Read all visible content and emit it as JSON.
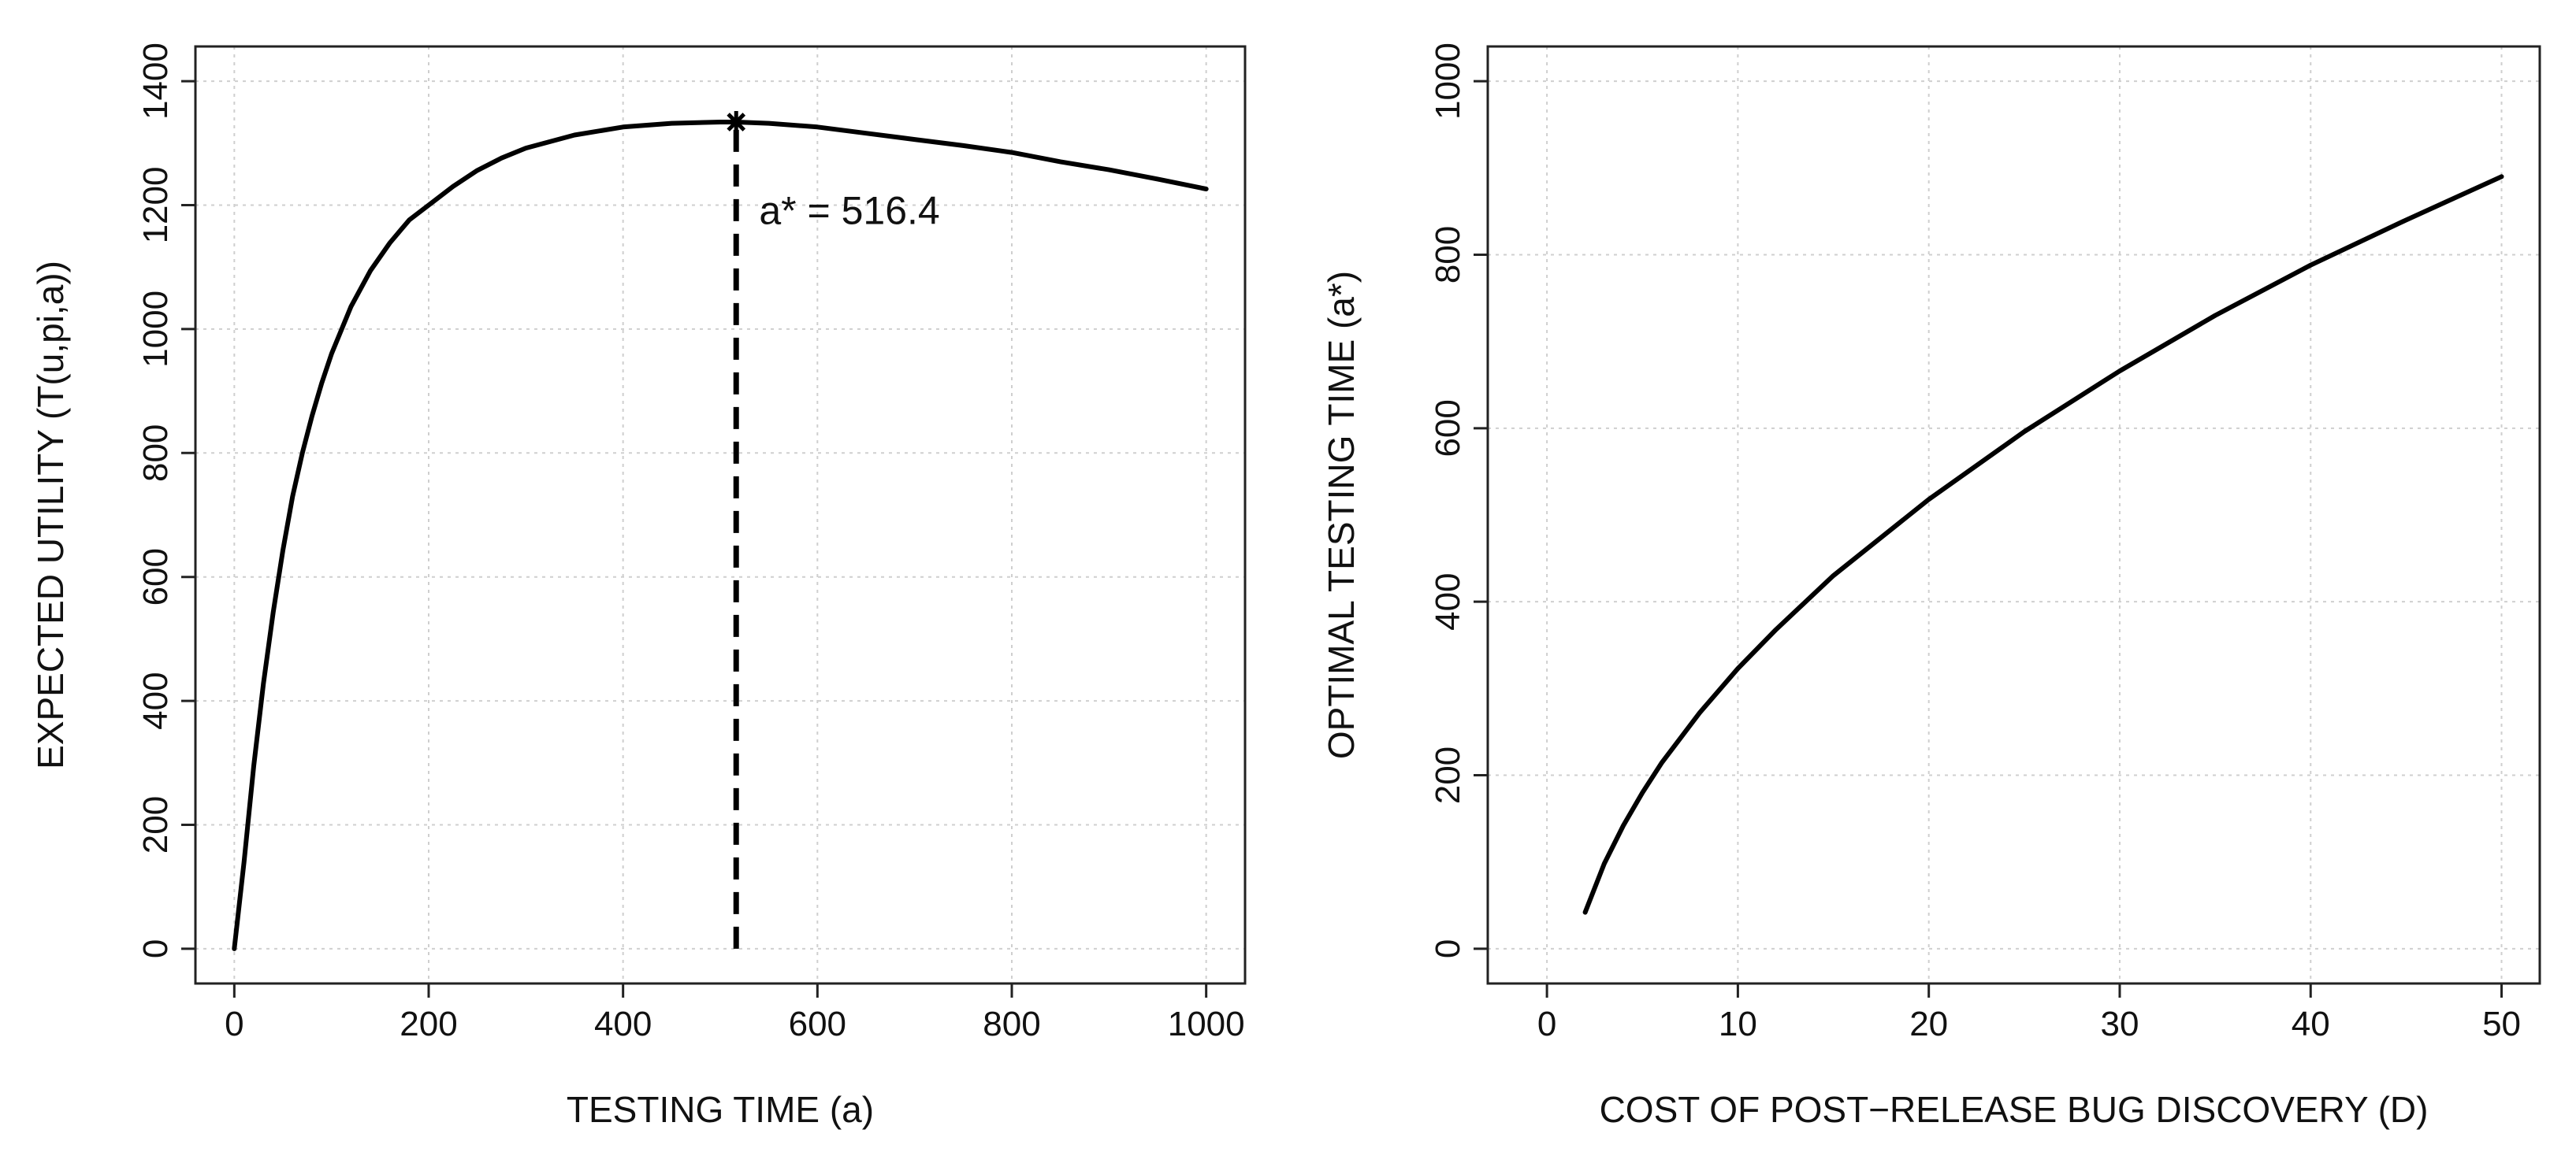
{
  "chart_data": [
    {
      "type": "line",
      "xlabel": "TESTING TIME (a)",
      "ylabel": "EXPECTED UTILITY (T(u,pi,a))",
      "xlim": [
        -40,
        1040
      ],
      "ylim": [
        -56,
        1456
      ],
      "xticks": [
        0,
        200,
        400,
        600,
        800,
        1000
      ],
      "yticks": [
        0,
        200,
        400,
        600,
        800,
        1000,
        1200,
        1400
      ],
      "grid": true,
      "series": [
        {
          "x": [
            0,
            10,
            20,
            30,
            40,
            50,
            60,
            70,
            80,
            90,
            100,
            120,
            140,
            160,
            180,
            200,
            225,
            250,
            275,
            300,
            350,
            400,
            450,
            500,
            516.4,
            550,
            600,
            650,
            700,
            750,
            800,
            850,
            900,
            950,
            1000
          ],
          "values": [
            0,
            140,
            295,
            428,
            543,
            643,
            730,
            800,
            860,
            913,
            960,
            1036,
            1094,
            1139,
            1176,
            1200,
            1230,
            1256,
            1276,
            1292,
            1313,
            1326,
            1332,
            1334,
            1334,
            1332,
            1326,
            1316,
            1306,
            1296,
            1285,
            1270,
            1257,
            1242,
            1226
          ]
        }
      ],
      "marker": {
        "x": 516.4,
        "y": 1334,
        "symbol": "asterisk"
      },
      "reference_line": {
        "x": 516.4,
        "from_y": 0,
        "to_y": 1334,
        "style": "dashed"
      },
      "annotation": {
        "text": "a* = 516.4",
        "x": 540,
        "y": 1190
      }
    },
    {
      "type": "line",
      "xlabel": "COST OF POST−RELEASE BUG DISCOVERY (D)",
      "ylabel": "OPTIMAL TESTING TIME (a*)",
      "xlim": [
        -3.1,
        52
      ],
      "ylim": [
        -40,
        1040
      ],
      "xticks": [
        0,
        10,
        20,
        30,
        40,
        50
      ],
      "yticks": [
        0,
        200,
        400,
        600,
        800,
        1000
      ],
      "grid": true,
      "series": [
        {
          "x": [
            2,
            3,
            4,
            5,
            6,
            8,
            10,
            12,
            15,
            20,
            25,
            30,
            35,
            40,
            45,
            50
          ],
          "values": [
            42,
            98,
            142,
            180,
            214,
            272,
            323,
            368,
            430,
            518,
            596,
            666,
            730,
            788,
            840,
            890
          ]
        }
      ]
    }
  ]
}
